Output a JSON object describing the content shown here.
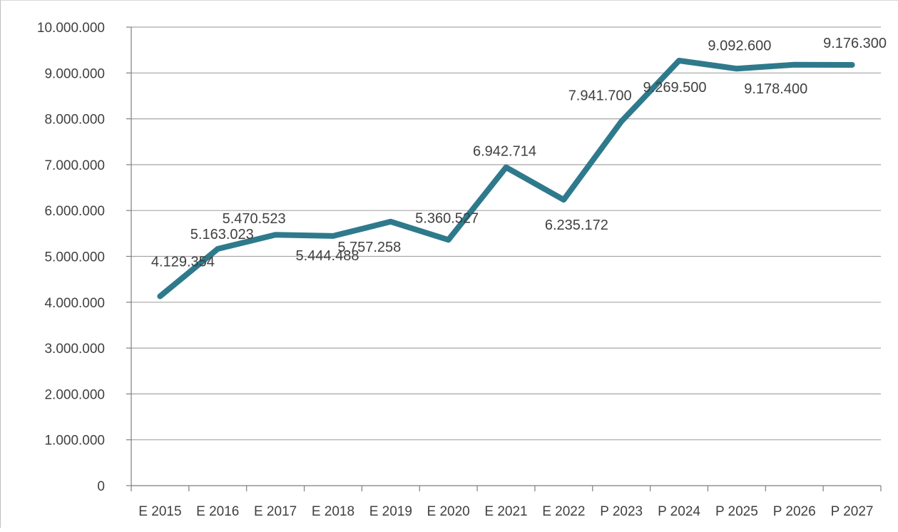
{
  "chart_data": {
    "type": "line",
    "title": "",
    "xlabel": "",
    "ylabel": "",
    "categories": [
      "E 2015",
      "E 2016",
      "E 2017",
      "E 2018",
      "E 2019",
      "E 2020",
      "E 2021",
      "E 2022",
      "P 2023",
      "P 2024",
      "P 2025",
      "P 2026",
      "P 2027"
    ],
    "series": [
      {
        "values": [
          4129354,
          5163023,
          5470523,
          5444488,
          5757258,
          5360527,
          6942714,
          6235172,
          7941700,
          9269500,
          9092600,
          9178400,
          9176300
        ],
        "data_labels": [
          "4.129.354",
          "5.163.023",
          "5.470.523",
          "5.444.488",
          "5.757.258",
          "5.360.527",
          "6.942.714",
          "6.235.172",
          "7.941.700",
          "9.269.500",
          "9.092.600",
          "9.178.400",
          "9.176.300"
        ]
      }
    ],
    "ylim": [
      0,
      10000000
    ],
    "y_ticks": [
      0,
      1000000,
      2000000,
      3000000,
      4000000,
      5000000,
      6000000,
      7000000,
      8000000,
      9000000,
      10000000
    ],
    "y_tick_labels": [
      "0",
      "1.000.000",
      "2.000.000",
      "3.000.000",
      "4.000.000",
      "5.000.000",
      "6.000.000",
      "7.000.000",
      "8.000.000",
      "9.000.000",
      "10.000.000"
    ],
    "grid": true,
    "legend": "none",
    "colors": {
      "line": "#2e7a8c",
      "grid": "#a6a6a6",
      "axis": "#7f7f7f",
      "text": "#404040"
    }
  }
}
